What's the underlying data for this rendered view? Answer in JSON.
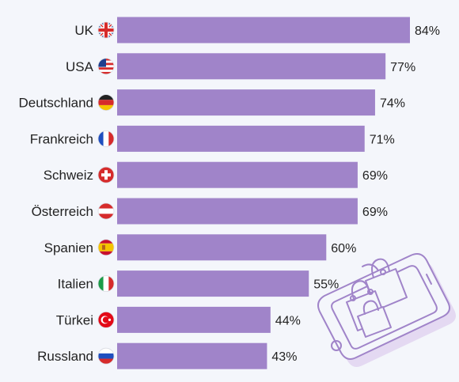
{
  "chart_data": {
    "type": "bar",
    "orientation": "horizontal",
    "categories": [
      "UK",
      "USA",
      "Deutschland",
      "Frankreich",
      "Schweiz",
      "Österreich",
      "Spanien",
      "Italien",
      "Türkei",
      "Russland"
    ],
    "values": [
      84,
      77,
      74,
      71,
      69,
      69,
      60,
      55,
      44,
      43
    ],
    "value_labels": [
      "84%",
      "77%",
      "74%",
      "71%",
      "69%",
      "69%",
      "60%",
      "55%",
      "44%",
      "43%"
    ],
    "flags": [
      "uk-flag-icon",
      "usa-flag-icon",
      "germany-flag-icon",
      "france-flag-icon",
      "switzerland-flag-icon",
      "austria-flag-icon",
      "spain-flag-icon",
      "italy-flag-icon",
      "turkey-flag-icon",
      "russia-flag-icon"
    ],
    "bar_color": "#a084c9",
    "xlim": [
      0,
      100
    ],
    "grid": false,
    "legend": "none"
  },
  "decoration": {
    "illustration_icon": "phone-with-shopping-bags-icon",
    "line_color": "#a084c9",
    "fill_color": "#e4d9f2"
  }
}
